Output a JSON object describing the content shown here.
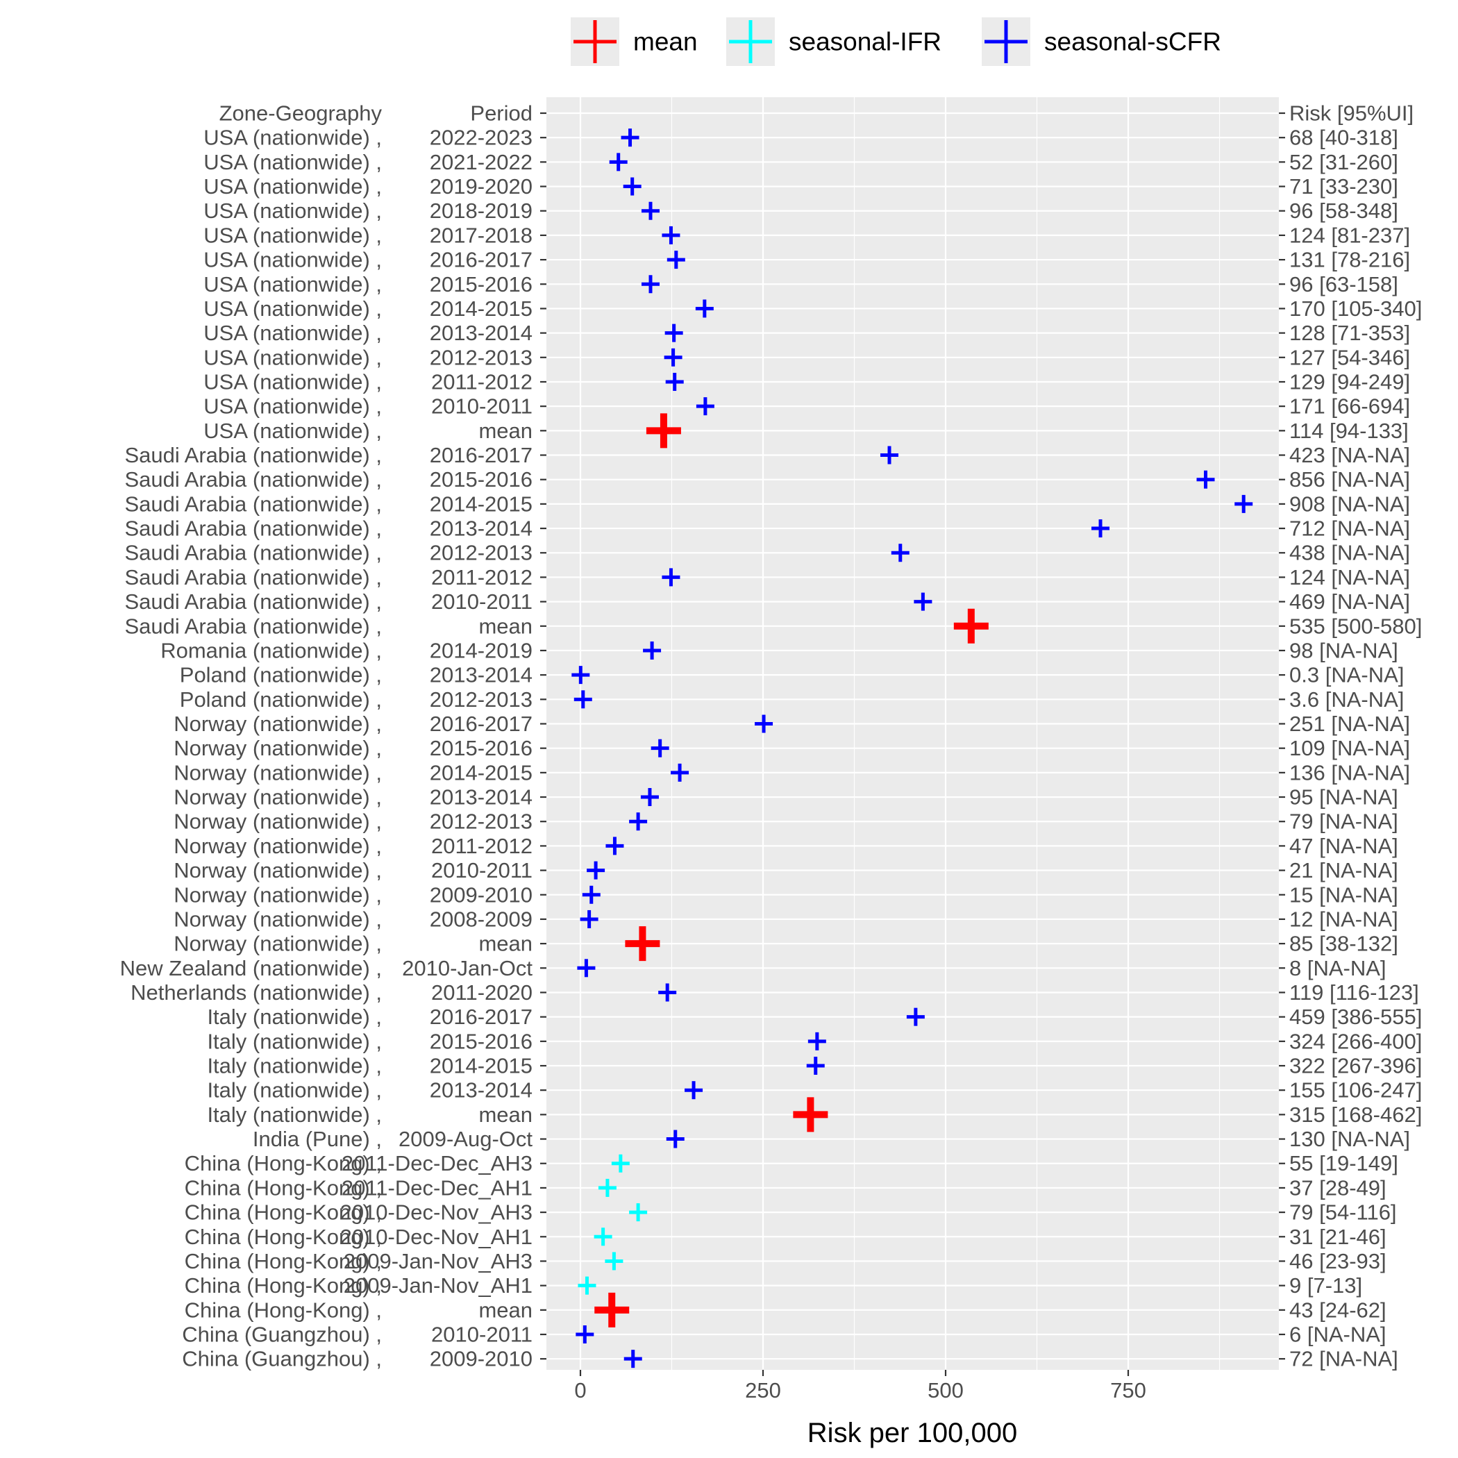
{
  "chart_data": {
    "type": "scatter",
    "xlabel": "Risk per 100,000",
    "x_ticks": [
      0,
      250,
      500,
      750
    ],
    "xlim": [
      -45,
      955
    ],
    "grid": true,
    "legend": {
      "position": "top",
      "entries": [
        {
          "name": "mean",
          "color": "#ff0000"
        },
        {
          "name": "seasonal-IFR",
          "color": "#00ffff"
        },
        {
          "name": "seasonal-sCFR",
          "color": "#0000ff"
        }
      ]
    },
    "header_row": {
      "zone": "Zone-Geography",
      "period": "Period",
      "risk": "Risk [95%UI]"
    },
    "rows": [
      {
        "zone": "USA (nationwide) ,",
        "period": "2022-2023",
        "value": 68,
        "risk": "68 [40-318]",
        "series": "seasonal-sCFR"
      },
      {
        "zone": "USA (nationwide) ,",
        "period": "2021-2022",
        "value": 52,
        "risk": "52 [31-260]",
        "series": "seasonal-sCFR"
      },
      {
        "zone": "USA (nationwide) ,",
        "period": "2019-2020",
        "value": 71,
        "risk": "71 [33-230]",
        "series": "seasonal-sCFR"
      },
      {
        "zone": "USA (nationwide) ,",
        "period": "2018-2019",
        "value": 96,
        "risk": "96 [58-348]",
        "series": "seasonal-sCFR"
      },
      {
        "zone": "USA (nationwide) ,",
        "period": "2017-2018",
        "value": 124,
        "risk": "124 [81-237]",
        "series": "seasonal-sCFR"
      },
      {
        "zone": "USA (nationwide) ,",
        "period": "2016-2017",
        "value": 131,
        "risk": "131 [78-216]",
        "series": "seasonal-sCFR"
      },
      {
        "zone": "USA (nationwide) ,",
        "period": "2015-2016",
        "value": 96,
        "risk": "96 [63-158]",
        "series": "seasonal-sCFR"
      },
      {
        "zone": "USA (nationwide) ,",
        "period": "2014-2015",
        "value": 170,
        "risk": "170 [105-340]",
        "series": "seasonal-sCFR"
      },
      {
        "zone": "USA (nationwide) ,",
        "period": "2013-2014",
        "value": 128,
        "risk": "128 [71-353]",
        "series": "seasonal-sCFR"
      },
      {
        "zone": "USA (nationwide) ,",
        "period": "2012-2013",
        "value": 127,
        "risk": "127 [54-346]",
        "series": "seasonal-sCFR"
      },
      {
        "zone": "USA (nationwide) ,",
        "period": "2011-2012",
        "value": 129,
        "risk": "129 [94-249]",
        "series": "seasonal-sCFR"
      },
      {
        "zone": "USA (nationwide) ,",
        "period": "2010-2011",
        "value": 171,
        "risk": "171 [66-694]",
        "series": "seasonal-sCFR"
      },
      {
        "zone": "USA (nationwide) ,",
        "period": "mean",
        "value": 114,
        "risk": "114 [94-133]",
        "series": "mean"
      },
      {
        "zone": "Saudi Arabia (nationwide) ,",
        "period": "2016-2017",
        "value": 423,
        "risk": "423 [NA-NA]",
        "series": "seasonal-sCFR"
      },
      {
        "zone": "Saudi Arabia (nationwide) ,",
        "period": "2015-2016",
        "value": 856,
        "risk": "856 [NA-NA]",
        "series": "seasonal-sCFR"
      },
      {
        "zone": "Saudi Arabia (nationwide) ,",
        "period": "2014-2015",
        "value": 908,
        "risk": "908 [NA-NA]",
        "series": "seasonal-sCFR"
      },
      {
        "zone": "Saudi Arabia (nationwide) ,",
        "period": "2013-2014",
        "value": 712,
        "risk": "712 [NA-NA]",
        "series": "seasonal-sCFR"
      },
      {
        "zone": "Saudi Arabia (nationwide) ,",
        "period": "2012-2013",
        "value": 438,
        "risk": "438 [NA-NA]",
        "series": "seasonal-sCFR"
      },
      {
        "zone": "Saudi Arabia (nationwide) ,",
        "period": "2011-2012",
        "value": 124,
        "risk": "124 [NA-NA]",
        "series": "seasonal-sCFR"
      },
      {
        "zone": "Saudi Arabia (nationwide) ,",
        "period": "2010-2011",
        "value": 469,
        "risk": "469 [NA-NA]",
        "series": "seasonal-sCFR"
      },
      {
        "zone": "Saudi Arabia (nationwide) ,",
        "period": "mean",
        "value": 535,
        "risk": "535 [500-580]",
        "series": "mean"
      },
      {
        "zone": "Romania (nationwide) ,",
        "period": "2014-2019",
        "value": 98,
        "risk": "98 [NA-NA]",
        "series": "seasonal-sCFR"
      },
      {
        "zone": "Poland (nationwide) ,",
        "period": "2013-2014",
        "value": 0.3,
        "risk": "0.3 [NA-NA]",
        "series": "seasonal-sCFR"
      },
      {
        "zone": "Poland (nationwide) ,",
        "period": "2012-2013",
        "value": 3.6,
        "risk": "3.6 [NA-NA]",
        "series": "seasonal-sCFR"
      },
      {
        "zone": "Norway (nationwide) ,",
        "period": "2016-2017",
        "value": 251,
        "risk": "251 [NA-NA]",
        "series": "seasonal-sCFR"
      },
      {
        "zone": "Norway (nationwide) ,",
        "period": "2015-2016",
        "value": 109,
        "risk": "109 [NA-NA]",
        "series": "seasonal-sCFR"
      },
      {
        "zone": "Norway (nationwide) ,",
        "period": "2014-2015",
        "value": 136,
        "risk": "136 [NA-NA]",
        "series": "seasonal-sCFR"
      },
      {
        "zone": "Norway (nationwide) ,",
        "period": "2013-2014",
        "value": 95,
        "risk": "95 [NA-NA]",
        "series": "seasonal-sCFR"
      },
      {
        "zone": "Norway (nationwide) ,",
        "period": "2012-2013",
        "value": 79,
        "risk": "79 [NA-NA]",
        "series": "seasonal-sCFR"
      },
      {
        "zone": "Norway (nationwide) ,",
        "period": "2011-2012",
        "value": 47,
        "risk": "47 [NA-NA]",
        "series": "seasonal-sCFR"
      },
      {
        "zone": "Norway (nationwide) ,",
        "period": "2010-2011",
        "value": 21,
        "risk": "21 [NA-NA]",
        "series": "seasonal-sCFR"
      },
      {
        "zone": "Norway (nationwide) ,",
        "period": "2009-2010",
        "value": 15,
        "risk": "15 [NA-NA]",
        "series": "seasonal-sCFR"
      },
      {
        "zone": "Norway (nationwide) ,",
        "period": "2008-2009",
        "value": 12,
        "risk": "12 [NA-NA]",
        "series": "seasonal-sCFR"
      },
      {
        "zone": "Norway (nationwide) ,",
        "period": "mean",
        "value": 85,
        "risk": "85 [38-132]",
        "series": "mean"
      },
      {
        "zone": "New Zealand (nationwide) ,",
        "period": "2010-Jan-Oct",
        "value": 8,
        "risk": "8 [NA-NA]",
        "series": "seasonal-sCFR"
      },
      {
        "zone": "Netherlands (nationwide) ,",
        "period": "2011-2020",
        "value": 119,
        "risk": "119 [116-123]",
        "series": "seasonal-sCFR"
      },
      {
        "zone": "Italy (nationwide) ,",
        "period": "2016-2017",
        "value": 459,
        "risk": "459 [386-555]",
        "series": "seasonal-sCFR"
      },
      {
        "zone": "Italy (nationwide) ,",
        "period": "2015-2016",
        "value": 324,
        "risk": "324 [266-400]",
        "series": "seasonal-sCFR"
      },
      {
        "zone": "Italy (nationwide) ,",
        "period": "2014-2015",
        "value": 322,
        "risk": "322 [267-396]",
        "series": "seasonal-sCFR"
      },
      {
        "zone": "Italy (nationwide) ,",
        "period": "2013-2014",
        "value": 155,
        "risk": "155 [106-247]",
        "series": "seasonal-sCFR"
      },
      {
        "zone": "Italy (nationwide) ,",
        "period": "mean",
        "value": 315,
        "risk": "315 [168-462]",
        "series": "mean"
      },
      {
        "zone": "India (Pune) ,",
        "period": "2009-Aug-Oct",
        "value": 130,
        "risk": "130 [NA-NA]",
        "series": "seasonal-sCFR"
      },
      {
        "zone": "China (Hong-Kong) ,",
        "period": "2011-Dec-Dec_AH3",
        "value": 55,
        "risk": "55 [19-149]",
        "series": "seasonal-IFR"
      },
      {
        "zone": "China (Hong-Kong) ,",
        "period": "2011-Dec-Dec_AH1",
        "value": 37,
        "risk": "37 [28-49]",
        "series": "seasonal-IFR"
      },
      {
        "zone": "China (Hong-Kong) ,",
        "period": "2010-Dec-Nov_AH3",
        "value": 79,
        "risk": "79 [54-116]",
        "series": "seasonal-IFR"
      },
      {
        "zone": "China (Hong-Kong) ,",
        "period": "2010-Dec-Nov_AH1",
        "value": 31,
        "risk": "31 [21-46]",
        "series": "seasonal-IFR"
      },
      {
        "zone": "China (Hong-Kong) ,",
        "period": "2009-Jan-Nov_AH3",
        "value": 46,
        "risk": "46 [23-93]",
        "series": "seasonal-IFR"
      },
      {
        "zone": "China (Hong-Kong) ,",
        "period": "2009-Jan-Nov_AH1",
        "value": 9,
        "risk": "9 [7-13]",
        "series": "seasonal-IFR"
      },
      {
        "zone": "China (Hong-Kong) ,",
        "period": "mean",
        "value": 43,
        "risk": "43 [24-62]",
        "series": "mean"
      },
      {
        "zone": "China (Guangzhou) ,",
        "period": "2010-2011",
        "value": 6,
        "risk": "6 [NA-NA]",
        "series": "seasonal-sCFR"
      },
      {
        "zone": "China (Guangzhou) ,",
        "period": "2009-2010",
        "value": 72,
        "risk": "72 [NA-NA]",
        "series": "seasonal-sCFR"
      }
    ]
  }
}
